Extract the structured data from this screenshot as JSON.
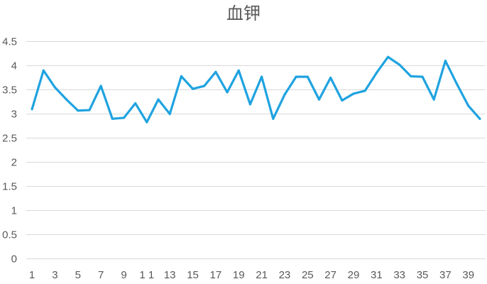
{
  "chart_data": {
    "type": "line",
    "title": "血钾",
    "xlabel": "",
    "ylabel": "",
    "ylim": [
      0,
      4.5
    ],
    "y_ticks": [
      "0",
      "0.5",
      "1",
      "1.5",
      "2",
      "2.5",
      "3",
      "3.5",
      "4",
      "4.5"
    ],
    "x": [
      1,
      2,
      3,
      4,
      5,
      6,
      7,
      8,
      9,
      10,
      11,
      12,
      13,
      14,
      15,
      16,
      17,
      18,
      19,
      20,
      21,
      22,
      23,
      24,
      25,
      26,
      27,
      28,
      29,
      30,
      31,
      32,
      33,
      34,
      35,
      36,
      37,
      38,
      39,
      40
    ],
    "x_tick_labels": [
      "1",
      "3",
      "5",
      "7",
      "9",
      "1 1",
      "13",
      "15",
      "17",
      "19",
      "21",
      "23",
      "25",
      "27",
      "29",
      "31",
      "33",
      "35",
      "37",
      "39"
    ],
    "series": [
      {
        "color": "#1fa3e0",
        "values": [
          3.1,
          3.9,
          3.55,
          3.3,
          3.07,
          3.08,
          3.58,
          2.9,
          2.92,
          3.22,
          2.83,
          3.3,
          3.0,
          3.78,
          3.52,
          3.58,
          3.87,
          3.45,
          3.9,
          3.2,
          3.77,
          2.9,
          3.4,
          3.77,
          3.77,
          3.3,
          3.75,
          3.28,
          3.42,
          3.48,
          3.85,
          4.18,
          4.02,
          3.78,
          3.77,
          3.3,
          4.1,
          3.62,
          3.17,
          2.9
        ]
      }
    ],
    "grid": true,
    "legend": "none",
    "colors": {
      "grid": "#d9d9d9",
      "text": "#595959"
    }
  }
}
